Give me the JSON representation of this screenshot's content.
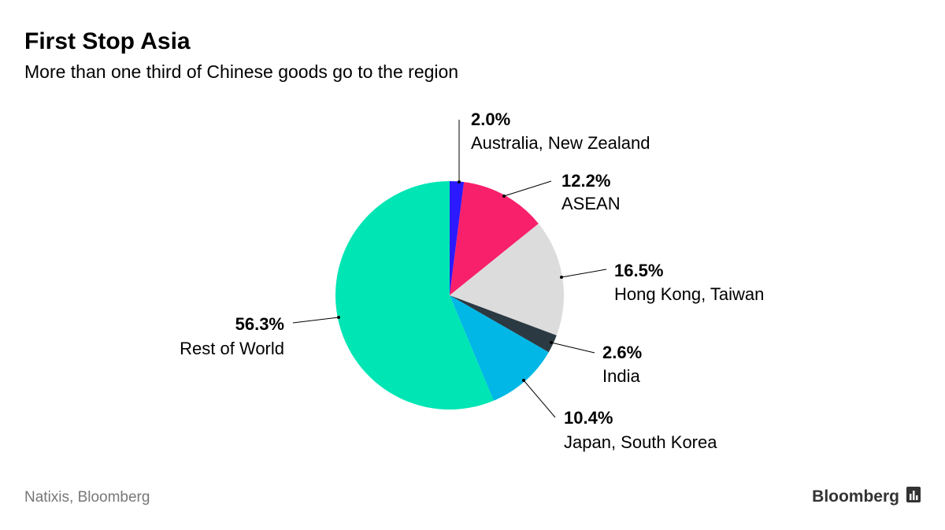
{
  "chart_data": {
    "type": "pie",
    "title": "First Stop Asia",
    "subtitle": "More than one third of Chinese goods go to the region",
    "categories": [
      "Australia, New Zealand",
      "ASEAN",
      "Hong Kong, Taiwan",
      "India",
      "Japan, South Korea",
      "Rest of World"
    ],
    "values": [
      2.0,
      12.2,
      16.5,
      2.6,
      10.4,
      56.3
    ],
    "value_labels": [
      "2.0%",
      "12.2%",
      "16.5%",
      "2.6%",
      "10.4%",
      "56.3%"
    ],
    "colors": [
      "#2b1aff",
      "#f8206a",
      "#dcdcdc",
      "#2b3a42",
      "#00b7e6",
      "#00e5b4"
    ],
    "source": "Natixis, Bloomberg",
    "brand": "Bloomberg"
  }
}
